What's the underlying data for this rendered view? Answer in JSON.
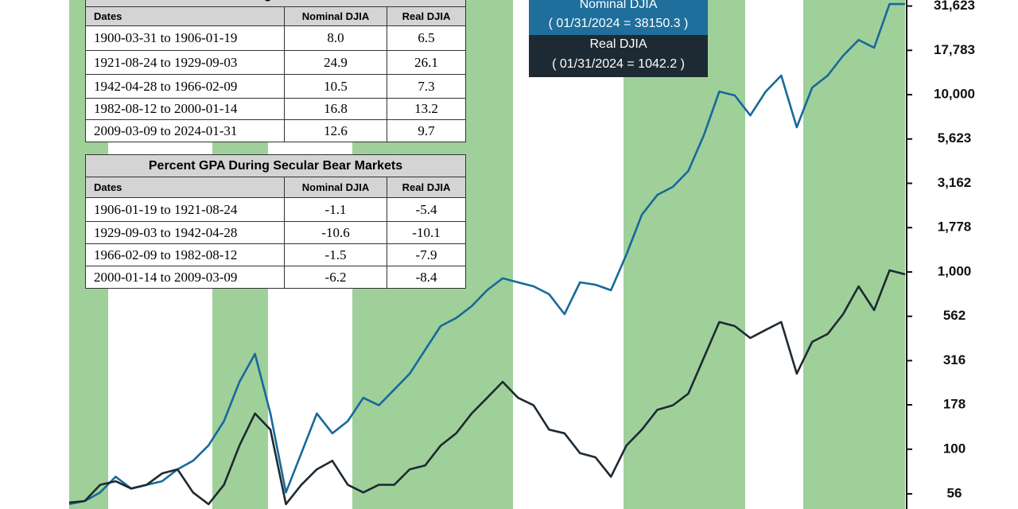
{
  "chart_data": {
    "type": "line",
    "log_scale": true,
    "categories": [
      null,
      null,
      null,
      null,
      null,
      null,
      null,
      null,
      null,
      null,
      null,
      null,
      null,
      null,
      null,
      null,
      null,
      null,
      null,
      null,
      null,
      null,
      null,
      null,
      null,
      null,
      null,
      null,
      null,
      null,
      null,
      null,
      null,
      null,
      null,
      null,
      null,
      null,
      null,
      null,
      null,
      null,
      null,
      null,
      null,
      null,
      null,
      null,
      null,
      null,
      null,
      null,
      null,
      null,
      null
    ],
    "series": [
      {
        "name": "Nominal DJIA",
        "annotation": "( 01/31/2024 = 38150.3 )",
        "color": "#17699b",
        "values": [
          49,
          51,
          57,
          70,
          60,
          63,
          66,
          77,
          86,
          105,
          144,
          240,
          345,
          159,
          57,
          95,
          159,
          123,
          144,
          195,
          177,
          217,
          267,
          364,
          495,
          550,
          641,
          789,
          921,
          874,
          830,
          749,
          578,
          874,
          847,
          789,
          1256,
          2104,
          2723,
          3020,
          3715,
          5905,
          10420,
          9900,
          7640,
          10420,
          12820,
          6550,
          10960,
          12820,
          16600,
          20370,
          18400,
          32430,
          32430
        ]
      },
      {
        "name": "Real DJIA",
        "annotation": "( 01/31/2024 = 1042.2 )",
        "color": "#1e2a33",
        "values": [
          50,
          51,
          63,
          66,
          60,
          63,
          73,
          77,
          57,
          49,
          63,
          105,
          159,
          129,
          49,
          63,
          77,
          86,
          63,
          57,
          63,
          63,
          77,
          81,
          105,
          123,
          159,
          195,
          240,
          195,
          177,
          129,
          123,
          95,
          90,
          70,
          105,
          129,
          167,
          177,
          206,
          328,
          522,
          495,
          424,
          471,
          522,
          267,
          403,
          447,
          578,
          830,
          609,
          1021,
          970
        ]
      }
    ],
    "ylim": [
      46,
      34200
    ],
    "yticks": [
      {
        "value": 31623,
        "label": "31,623"
      },
      {
        "value": 17783,
        "label": "17,783"
      },
      {
        "value": 10000,
        "label": "10,000"
      },
      {
        "value": 5623,
        "label": "5,623"
      },
      {
        "value": 3162,
        "label": "3,162"
      },
      {
        "value": 1778,
        "label": "1,778"
      },
      {
        "value": 1000,
        "label": "1,000"
      },
      562,
      316,
      178,
      100,
      56
    ]
  },
  "tables": [
    {
      "title": "Percent GPA During Secular Bull Markets",
      "columns": [
        "Dates",
        "Nominal DJIA",
        "Real DJIA"
      ],
      "rows": [
        [
          "1900-03-31 to 1906-01-19",
          "8.0",
          "6.5"
        ],
        [
          "1921-08-24 to 1929-09-03",
          "24.9",
          "26.1"
        ],
        [
          "1942-04-28 to 1966-02-09",
          "10.5",
          "7.3"
        ],
        [
          "1982-08-12 to 2000-01-14",
          "16.8",
          "13.2"
        ],
        [
          "2009-03-09 to 2024-01-31",
          "12.6",
          "9.7"
        ]
      ]
    },
    {
      "title": "Percent GPA During Secular Bear Markets",
      "columns": [
        "Dates",
        "Nominal DJIA",
        "Real DJIA"
      ],
      "rows": [
        [
          "1906-01-19 to 1921-08-24",
          "-1.1",
          "-5.4"
        ],
        [
          "1929-09-03 to 1942-04-28",
          "-10.6",
          "-10.1"
        ],
        [
          "1966-02-09 to 1982-08-12",
          "-1.5",
          "-7.9"
        ],
        [
          "2000-01-14 to 2009-03-09",
          "-6.2",
          "-8.4"
        ]
      ]
    }
  ]
}
